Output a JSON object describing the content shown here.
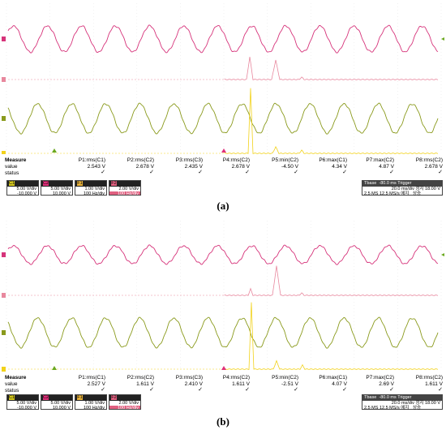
{
  "panels": [
    {
      "label": "(a)",
      "measure": {
        "header": "Measure",
        "row_value": "value",
        "row_status": "status",
        "columns": [
          {
            "name": "P1:rms(C1)",
            "value": "2.543 V",
            "status": "✓"
          },
          {
            "name": "P2:rms(C2)",
            "value": "2.678 V",
            "status": "✓"
          },
          {
            "name": "P3:rms(C3)",
            "value": "2.435 V",
            "status": "✓"
          },
          {
            "name": "P4:rms(C2)",
            "value": "2.678 V",
            "status": "✓"
          },
          {
            "name": "P5:min(C2)",
            "value": "-4.50 V",
            "status": "✓"
          },
          {
            "name": "P6:max(C1)",
            "value": "4.34 V",
            "status": "✓"
          },
          {
            "name": "P7:max(C2)",
            "value": "4.87 V",
            "status": "✓"
          },
          {
            "name": "P8:rms(C2)",
            "value": "2.678 V",
            "status": "✓"
          }
        ]
      },
      "channels": [
        {
          "id": "C1",
          "tag": "C1",
          "line1": "5.00 V/div",
          "line2": "-10.000 V",
          "color": "#d4c81e"
        },
        {
          "id": "C2",
          "tag": "C2",
          "line1": "5.00 V/div",
          "line2": "10.000 V",
          "color": "#e0307a"
        },
        {
          "id": "F1",
          "tag": "F1",
          "line1": "1.00 V/div",
          "line2": "100 Hz/div",
          "color": "#e8b23a"
        },
        {
          "id": "F2",
          "tag": "F2",
          "line1": "2.00 V/div",
          "line2": "100 Hz/div",
          "color": "#e06080"
        }
      ],
      "timebase": {
        "title": "Tbase",
        "offset": "-80.0 ms",
        "trigger_label": "Trigger",
        "rate1": "20.0 ms/div",
        "rate2": "2.5 MS  12.5 MS/s",
        "mode1": "정지",
        "mode2": "에지",
        "level": "18.00 V",
        "slope": "상승"
      }
    },
    {
      "label": "(b)",
      "measure": {
        "header": "Measure",
        "row_value": "value",
        "row_status": "status",
        "columns": [
          {
            "name": "P1:rms(C1)",
            "value": "2.527 V",
            "status": "✓"
          },
          {
            "name": "P2:rms(C2)",
            "value": "1.611 V",
            "status": "✓"
          },
          {
            "name": "P3:rms(C3)",
            "value": "2.410 V",
            "status": "✓"
          },
          {
            "name": "P4:rms(C2)",
            "value": "1.611 V",
            "status": "✓"
          },
          {
            "name": "P5:min(C2)",
            "value": "-2.51 V",
            "status": "✓"
          },
          {
            "name": "P6:max(C1)",
            "value": "4.07 V",
            "status": "✓"
          },
          {
            "name": "P7:max(C2)",
            "value": "2.69 V",
            "status": "✓"
          },
          {
            "name": "P8:rms(C2)",
            "value": "1.611 V",
            "status": "✓"
          }
        ]
      },
      "channels": [
        {
          "id": "C1",
          "tag": "C1",
          "line1": "5.00 V/div",
          "line2": "-10.000 V",
          "color": "#d4c81e"
        },
        {
          "id": "C2",
          "tag": "C2",
          "line1": "5.00 V/div",
          "line2": "10.000 V",
          "color": "#e0307a"
        },
        {
          "id": "F1",
          "tag": "F1",
          "line1": "1.00 V/div",
          "line2": "100 Hz/div",
          "color": "#e8b23a"
        },
        {
          "id": "F2",
          "tag": "F2",
          "line1": "2.00 V/div",
          "line2": "100 Hz/div",
          "color": "#e06080"
        }
      ],
      "timebase": {
        "title": "Tbase",
        "offset": "-80.0 ms",
        "trigger_label": "Trigger",
        "rate1": "20.0 ms/div",
        "rate2": "2.5 MS  12.5 MS/s",
        "mode1": "정지",
        "mode2": "에지",
        "level": "18.00 V",
        "slope": "상승"
      }
    }
  ],
  "colors": {
    "current": "#d6337a",
    "spectrum_current": "#e8889e",
    "voltage": "#8a9a1c",
    "spectrum_voltage": "#f2d21a",
    "trigger_marker": "#e0307a",
    "time_marker": "#6aa81e"
  }
}
